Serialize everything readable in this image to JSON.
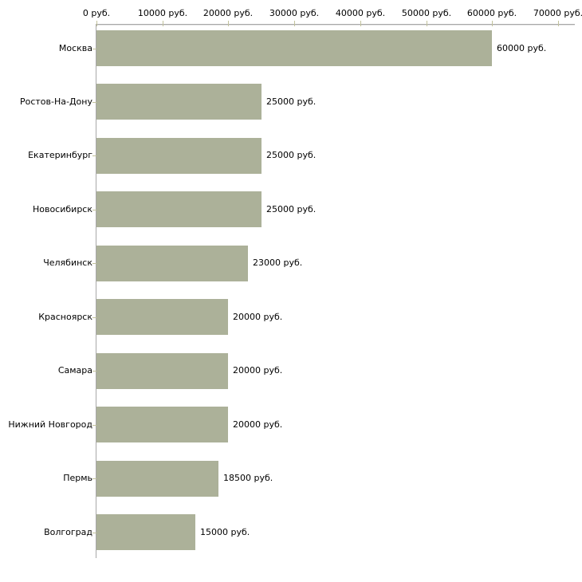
{
  "chart_data": {
    "type": "bar",
    "orientation": "horizontal",
    "categories": [
      "Москва",
      "Ростов-На-Дону",
      "Екатеринбург",
      "Новосибирск",
      "Челябинск",
      "Красноярск",
      "Самара",
      "Нижний Новгород",
      "Пермь",
      "Волгоград"
    ],
    "values": [
      60000,
      25000,
      25000,
      25000,
      23000,
      20000,
      20000,
      20000,
      18500,
      15000
    ],
    "value_labels": [
      "60000 руб.",
      "25000 руб.",
      "25000 руб.",
      "25000 руб.",
      "23000 руб.",
      "20000 руб.",
      "20000 руб.",
      "20000 руб.",
      "18500 руб.",
      "15000 руб."
    ],
    "x_axis": {
      "position": "top",
      "min": 0,
      "max": 70000,
      "ticks": [
        0,
        10000,
        20000,
        30000,
        40000,
        50000,
        60000,
        70000
      ],
      "tick_labels": [
        "0 руб.",
        "10000 руб.",
        "20000 руб.",
        "30000 руб.",
        "40000 руб.",
        "50000 руб.",
        "60000 руб.",
        "70000 руб."
      ],
      "unit": "руб."
    },
    "grid": false,
    "legend": false,
    "colors": {
      "bar": "#acb199",
      "tick": "#c2c29c",
      "axis_line": "#a8a8a8",
      "axis_line_highlight": "#e2e2e2",
      "text": "#000000",
      "background": "#ffffff"
    }
  }
}
